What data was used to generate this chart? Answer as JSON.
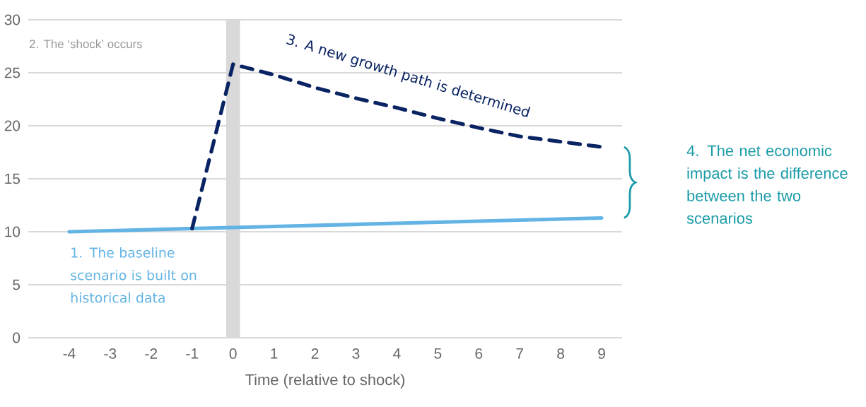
{
  "chart_data": {
    "type": "line",
    "xlabel": "Time (relative to shock)",
    "x": [
      -4,
      -3,
      -2,
      -1,
      0,
      1,
      2,
      3,
      4,
      5,
      6,
      7,
      8,
      9
    ],
    "xlim": [
      -5,
      9.5
    ],
    "xticks": [
      -4,
      -3,
      -2,
      -1,
      0,
      1,
      2,
      3,
      4,
      5,
      6,
      7,
      8,
      9
    ],
    "ylim": [
      0,
      30
    ],
    "yticks": [
      0,
      5,
      10,
      15,
      20,
      25,
      30
    ],
    "grid": "y",
    "marker": "none",
    "series": [
      {
        "name": "1. The baseline scenario is built on historical data",
        "color": "#63b4e4",
        "line_style": "solid",
        "values": [
          10.0,
          10.1,
          10.2,
          10.3,
          10.4,
          10.5,
          10.6,
          10.7,
          10.8,
          10.9,
          11.0,
          11.1,
          11.2,
          11.3
        ]
      },
      {
        "name": "3. A new growth path is determined",
        "color": "#0a2463",
        "line_style": "dashed",
        "values": [
          null,
          null,
          null,
          10.3,
          25.8,
          24.8,
          23.6,
          22.6,
          21.7,
          20.7,
          19.8,
          19.0,
          18.5,
          18.0
        ]
      }
    ],
    "bands": [
      {
        "axis": "x",
        "from": -0.17,
        "to": 0.17,
        "color": "#d9d9d9"
      }
    ],
    "annotations": [
      "2. The ‘shock’ occurs",
      "4. The net economic impact is the difference between the two scenarios"
    ]
  }
}
